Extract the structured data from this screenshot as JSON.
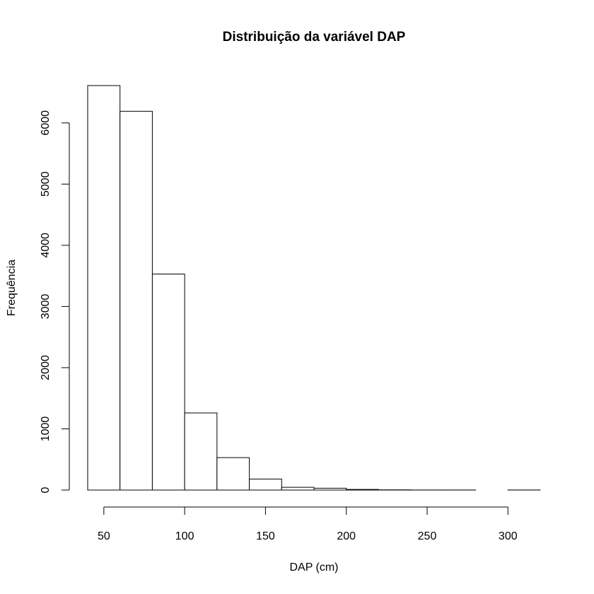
{
  "chart_data": {
    "type": "bar",
    "title": "Distribuição da variável DAP",
    "xlabel": "DAP (cm)",
    "ylabel": "Frequência",
    "bins": [
      {
        "start": 40,
        "end": 60,
        "count": 6610
      },
      {
        "start": 60,
        "end": 80,
        "count": 6190
      },
      {
        "start": 80,
        "end": 100,
        "count": 3530
      },
      {
        "start": 100,
        "end": 120,
        "count": 1260
      },
      {
        "start": 120,
        "end": 140,
        "count": 530
      },
      {
        "start": 140,
        "end": 160,
        "count": 180
      },
      {
        "start": 160,
        "end": 180,
        "count": 45
      },
      {
        "start": 180,
        "end": 200,
        "count": 30
      },
      {
        "start": 200,
        "end": 220,
        "count": 10
      },
      {
        "start": 220,
        "end": 240,
        "count": 3
      },
      {
        "start": 240,
        "end": 260,
        "count": 1
      },
      {
        "start": 260,
        "end": 280,
        "count": 1
      },
      {
        "start": 280,
        "end": 300,
        "count": 0
      },
      {
        "start": 300,
        "end": 320,
        "count": 1
      }
    ],
    "x_ticks": [
      "50",
      "100",
      "150",
      "200",
      "250",
      "300"
    ],
    "y_ticks": [
      "0",
      "1000",
      "2000",
      "3000",
      "4000",
      "5000",
      "6000"
    ],
    "xlim": [
      40,
      320
    ],
    "ylim": [
      0,
      6610
    ],
    "grid": false,
    "legend": "none"
  }
}
